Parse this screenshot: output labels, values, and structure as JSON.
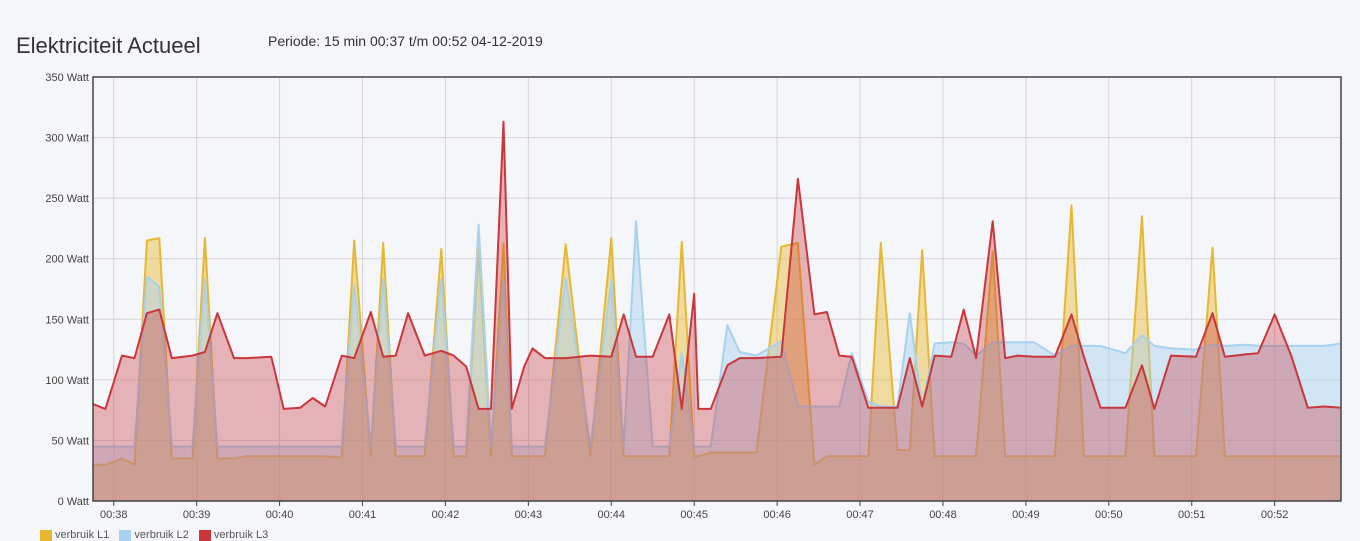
{
  "header": {
    "title": "Elektriciteit Actueel",
    "period": "Periode: 15 min 00:37 t/m 00:52 04-12-2019"
  },
  "colors": {
    "L1": "#e8b730",
    "L2": "#a8d1f0",
    "L3": "#c9373c",
    "grid": "#d4d4d4",
    "axis": "#444444"
  },
  "chart_data": {
    "type": "area",
    "title": "",
    "xlabel": "",
    "ylabel": "",
    "ylim": [
      0,
      350
    ],
    "yticks": [
      0,
      50,
      100,
      150,
      200,
      250,
      300,
      350
    ],
    "ytick_labels": [
      "0 Watt",
      "50 Watt",
      "100 Watt",
      "150 Watt",
      "200 Watt",
      "250 Watt",
      "300 Watt",
      "350 Watt"
    ],
    "xtick_labels": [
      "00:38",
      "00:39",
      "00:40",
      "00:41",
      "00:42",
      "00:43",
      "00:44",
      "00:45",
      "00:46",
      "00:47",
      "00:48",
      "00:49",
      "00:50",
      "00:51",
      "00:52"
    ],
    "x_minutes_range": [
      37.75,
      52.8
    ],
    "grid": true,
    "legend": "bottom-left",
    "x": [
      37.75,
      37.9,
      38.1,
      38.25,
      38.4,
      38.55,
      38.7,
      38.95,
      39.1,
      39.25,
      39.45,
      39.6,
      39.9,
      40.05,
      40.25,
      40.4,
      40.55,
      40.75,
      40.9,
      41.1,
      41.25,
      41.4,
      41.55,
      41.75,
      41.95,
      42.1,
      42.25,
      42.4,
      42.55,
      42.7,
      42.8,
      42.95,
      43.05,
      43.2,
      43.45,
      43.75,
      44.0,
      44.15,
      44.3,
      44.5,
      44.7,
      44.85,
      45.0,
      45.05,
      45.2,
      45.4,
      45.55,
      45.75,
      46.05,
      46.25,
      46.45,
      46.6,
      46.75,
      46.9,
      47.1,
      47.25,
      47.45,
      47.6,
      47.75,
      47.9,
      48.1,
      48.25,
      48.4,
      48.6,
      48.75,
      48.9,
      49.1,
      49.35,
      49.55,
      49.7,
      49.9,
      50.2,
      50.4,
      50.55,
      50.75,
      51.05,
      51.25,
      51.4,
      51.65,
      51.8,
      52.0,
      52.2,
      52.4,
      52.6,
      52.8
    ],
    "series": [
      {
        "name": "verbruik L1",
        "values": [
          30,
          30,
          35,
          30,
          215,
          217,
          35,
          35,
          217,
          35,
          35,
          37,
          37,
          37,
          37,
          37,
          37,
          36,
          215,
          37,
          213,
          37,
          37,
          37,
          208,
          37,
          37,
          208,
          37,
          213,
          37,
          37,
          37,
          37,
          212,
          37,
          217,
          37,
          37,
          37,
          37,
          214,
          37,
          37,
          40,
          40,
          40,
          40,
          210,
          213,
          30,
          37,
          37,
          37,
          37,
          213,
          42,
          42,
          207,
          37,
          37,
          37,
          37,
          206,
          37,
          37,
          37,
          37,
          244,
          37,
          37,
          37,
          235,
          37,
          37,
          37,
          209,
          37,
          37,
          37,
          37,
          37,
          37,
          37,
          37
        ]
      },
      {
        "name": "verbruik L2",
        "values": [
          45,
          45,
          45,
          45,
          185,
          177,
          45,
          45,
          183,
          45,
          45,
          45,
          45,
          45,
          45,
          45,
          45,
          45,
          178,
          45,
          183,
          45,
          45,
          45,
          183,
          45,
          45,
          228,
          45,
          182,
          45,
          45,
          45,
          45,
          184,
          45,
          182,
          45,
          231,
          45,
          45,
          122,
          45,
          45,
          45,
          145,
          123,
          120,
          132,
          78,
          78,
          78,
          78,
          122,
          82,
          78,
          78,
          155,
          78,
          130,
          131,
          130,
          120,
          131,
          131,
          131,
          131,
          120,
          128,
          128,
          128,
          122,
          137,
          128,
          126,
          125,
          129,
          128,
          129,
          128,
          128,
          128,
          128,
          128,
          130
        ]
      },
      {
        "name": "verbruik L3",
        "values": [
          80,
          76,
          120,
          118,
          155,
          158,
          118,
          120,
          123,
          155,
          118,
          118,
          119,
          76,
          77,
          85,
          78,
          120,
          118,
          156,
          119,
          120,
          155,
          120,
          124,
          120,
          111,
          76,
          76,
          313,
          76,
          111,
          126,
          118,
          118,
          120,
          119,
          154,
          119,
          119,
          154,
          76,
          171,
          76,
          76,
          112,
          118,
          118,
          119,
          266,
          154,
          156,
          120,
          119,
          77,
          77,
          77,
          118,
          78,
          120,
          119,
          158,
          118,
          231,
          118,
          120,
          119,
          119,
          154,
          119,
          77,
          77,
          112,
          76,
          120,
          119,
          155,
          119,
          121,
          122,
          154,
          120,
          77,
          78,
          77
        ]
      }
    ]
  }
}
